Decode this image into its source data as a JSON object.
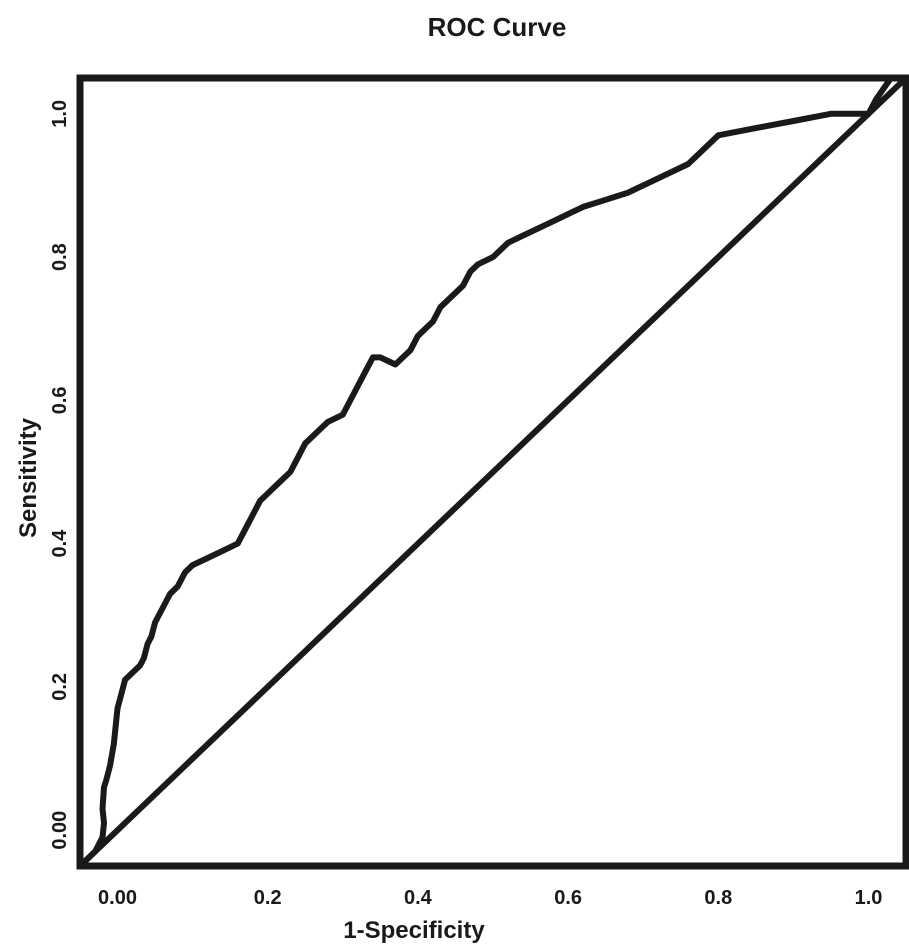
{
  "chart_data": {
    "type": "line",
    "title": "ROC Curve",
    "xlabel": "1-Specificity",
    "ylabel": "Sensitivity",
    "xlim": [
      -0.05,
      1.05
    ],
    "ylim": [
      -0.05,
      1.05
    ],
    "x_ticks": [
      {
        "value": 0.0,
        "label": "0.00"
      },
      {
        "value": 0.2,
        "label": "0.2"
      },
      {
        "value": 0.4,
        "label": "0.4"
      },
      {
        "value": 0.6,
        "label": "0.6"
      },
      {
        "value": 0.8,
        "label": "0.8"
      },
      {
        "value": 1.0,
        "label": "1.0"
      }
    ],
    "y_ticks": [
      {
        "value": 0.0,
        "label": "0.00"
      },
      {
        "value": 0.2,
        "label": "0.2"
      },
      {
        "value": 0.4,
        "label": "0.4"
      },
      {
        "value": 0.6,
        "label": "0.6"
      },
      {
        "value": 0.8,
        "label": "0.8"
      },
      {
        "value": 1.0,
        "label": "1.0"
      }
    ],
    "grid": false,
    "line_color": "#1a1a1a",
    "series": [
      {
        "x": [
          -0.05,
          -0.03,
          -0.02,
          -0.018,
          -0.02,
          -0.018,
          -0.015,
          -0.01,
          -0.005,
          0.0,
          0.005,
          0.01,
          0.02,
          0.03,
          0.035,
          0.04,
          0.045,
          0.05,
          0.055,
          0.06,
          0.065,
          0.07,
          0.08,
          0.09,
          0.1,
          0.12,
          0.14,
          0.16,
          0.17,
          0.18,
          0.19,
          0.2,
          0.21,
          0.22,
          0.23,
          0.24,
          0.25,
          0.26,
          0.27,
          0.28,
          0.3,
          0.31,
          0.32,
          0.33,
          0.34,
          0.35,
          0.37,
          0.39,
          0.4,
          0.41,
          0.42,
          0.43,
          0.44,
          0.46,
          0.47,
          0.48,
          0.5,
          0.52,
          0.54,
          0.56,
          0.58,
          0.6,
          0.62,
          0.65,
          0.68,
          0.72,
          0.76,
          0.8,
          0.85,
          0.9,
          0.95,
          0.98,
          1.0,
          1.01,
          1.03
        ],
        "y": [
          -0.05,
          -0.03,
          -0.01,
          0.01,
          0.03,
          0.06,
          0.07,
          0.09,
          0.12,
          0.17,
          0.19,
          0.21,
          0.22,
          0.23,
          0.24,
          0.26,
          0.27,
          0.29,
          0.3,
          0.31,
          0.32,
          0.33,
          0.34,
          0.36,
          0.37,
          0.38,
          0.39,
          0.4,
          0.42,
          0.44,
          0.46,
          0.47,
          0.48,
          0.49,
          0.5,
          0.52,
          0.54,
          0.55,
          0.56,
          0.57,
          0.58,
          0.6,
          0.62,
          0.64,
          0.66,
          0.66,
          0.65,
          0.67,
          0.69,
          0.7,
          0.71,
          0.73,
          0.74,
          0.76,
          0.78,
          0.79,
          0.8,
          0.82,
          0.83,
          0.84,
          0.85,
          0.86,
          0.87,
          0.88,
          0.89,
          0.91,
          0.93,
          0.97,
          0.98,
          0.99,
          1.0,
          1.0,
          1.0,
          1.02,
          1.05
        ]
      },
      {
        "x": [
          -0.05,
          1.05
        ],
        "y": [
          -0.05,
          1.05
        ]
      }
    ]
  }
}
